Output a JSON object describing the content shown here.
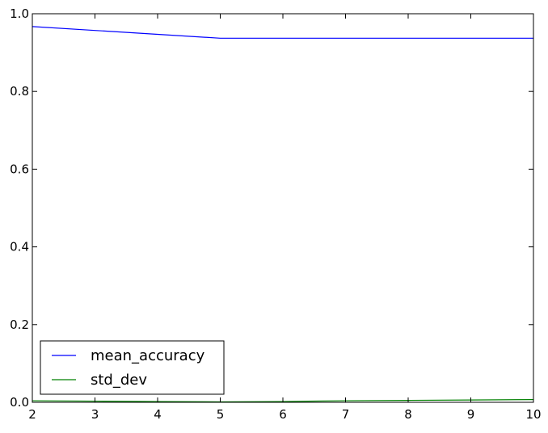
{
  "chart_data": {
    "type": "line",
    "title": "",
    "xlabel": "",
    "ylabel": "",
    "x": [
      2,
      3,
      4,
      5,
      6,
      7,
      8,
      9,
      10
    ],
    "xlim": [
      2,
      10
    ],
    "ylim": [
      0.0,
      1.0
    ],
    "xticks": [
      "2",
      "3",
      "4",
      "5",
      "6",
      "7",
      "8",
      "9",
      "10"
    ],
    "yticks": [
      "0.0",
      "0.2",
      "0.4",
      "0.6",
      "0.8",
      "1.0"
    ],
    "grid": false,
    "legend_position": "lower-left",
    "series": [
      {
        "name": "mean_accuracy",
        "color": "#0000ff",
        "values": [
          0.967,
          0.957,
          0.947,
          0.937,
          0.937,
          0.937,
          0.937,
          0.937,
          0.937
        ]
      },
      {
        "name": "std_dev",
        "color": "#008000",
        "values": [
          0.004,
          0.003,
          0.002,
          0.001,
          0.002,
          0.004,
          0.005,
          0.006,
          0.007
        ]
      }
    ]
  }
}
